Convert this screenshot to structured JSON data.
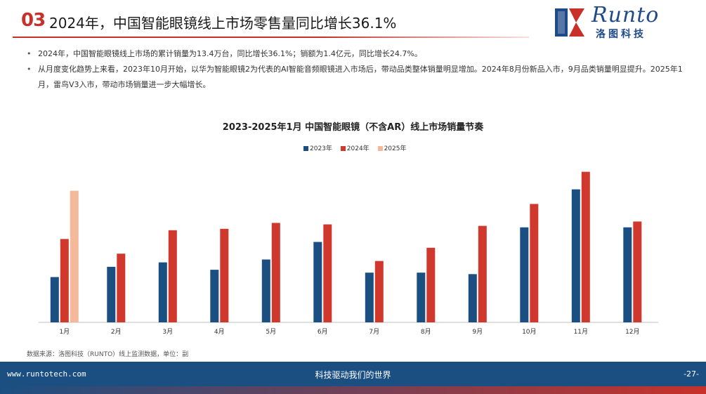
{
  "header": {
    "number": "03",
    "title": "2024年，中国智能眼镜线上市场零售量同比增长36.1%",
    "logo_word": "Runto",
    "logo_sub": "洛图科技"
  },
  "bullets": [
    "2024年，中国智能眼镜线上市场的累计销量为13.4万台，同比增长36.1%；销额为1.4亿元，同比增长24.7%。",
    "从月度变化趋势上来看，2023年10月开始，以华为智能眼镜2为代表的AI智能音频眼镜进入市场后，带动品类整体销量明显增加。2024年8月份新品入市，9月品类销量明显提升。2025年1月，雷鸟V3入市，带动市场销量进一步大幅增长。"
  ],
  "source": "数据来源：洛图科技（RUNTO）线上监测数据，单位：副",
  "footer": {
    "url": "www.runtotech.com",
    "slogan": "科技驱动我们的世界",
    "page": "-27-"
  },
  "colors": {
    "brand_red": "#c8312a",
    "brand_blue": "#1b4f82",
    "series_2023": "#1b4f82",
    "series_2024": "#d0382e",
    "series_2025": "#f4b89a"
  },
  "chart_data": {
    "type": "bar",
    "title": "2023-2025年1月 中国智能眼镜（不含AR）线上市场销量节奏",
    "categories": [
      "1月",
      "2月",
      "3月",
      "4月",
      "5月",
      "6月",
      "7月",
      "8月",
      "9月",
      "10月",
      "11月",
      "12月"
    ],
    "series": [
      {
        "name": "2023年",
        "color": "#1b4f82",
        "values": [
          31,
          38,
          41,
          36,
          43,
          55,
          34,
          34,
          33,
          65,
          91,
          65
        ]
      },
      {
        "name": "2024年",
        "color": "#d0382e",
        "values": [
          57,
          47,
          63,
          64,
          68,
          67,
          42,
          51,
          66,
          81,
          103,
          69
        ]
      },
      {
        "name": "2025年",
        "color": "#f4b89a",
        "values": [
          90,
          null,
          null,
          null,
          null,
          null,
          null,
          null,
          null,
          null,
          null,
          null
        ]
      }
    ],
    "ylim": [
      0,
      110
    ],
    "grid": false,
    "legend": "top-center"
  }
}
